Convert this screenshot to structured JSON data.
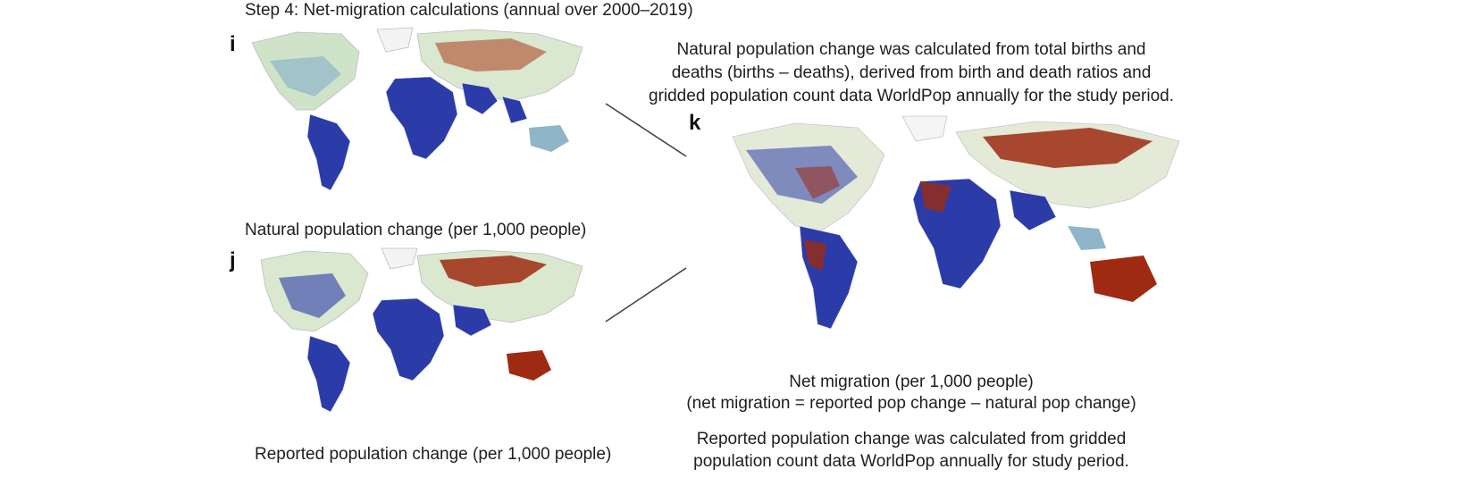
{
  "step_title": "Step 4: Net-migration calculations (annual over 2000–2019)",
  "panels": {
    "i": {
      "letter": "i",
      "caption": "Natural population change (per 1,000 people)"
    },
    "j": {
      "letter": "j",
      "caption": "Reported population change (per 1,000 people)"
    },
    "k": {
      "letter": "k",
      "caption_line1": "Net migration (per 1,000 people)",
      "caption_line2": "(net migration = reported pop change – natural pop change)"
    }
  },
  "notes": {
    "natural": [
      "Natural population change was calculated from total births and",
      "deaths (births – deaths), derived from birth and death ratios and",
      "gridded population count data WorldPop annually for the study period."
    ],
    "reported": [
      "Reported population change was calculated from gridded",
      "population count data WorldPop annually for study period."
    ]
  },
  "colors": {
    "negative": "#2b3ba8",
    "neutral": "#cfe3c8",
    "positive": "#9e2a12",
    "land_outline": "#c7c7c7"
  }
}
